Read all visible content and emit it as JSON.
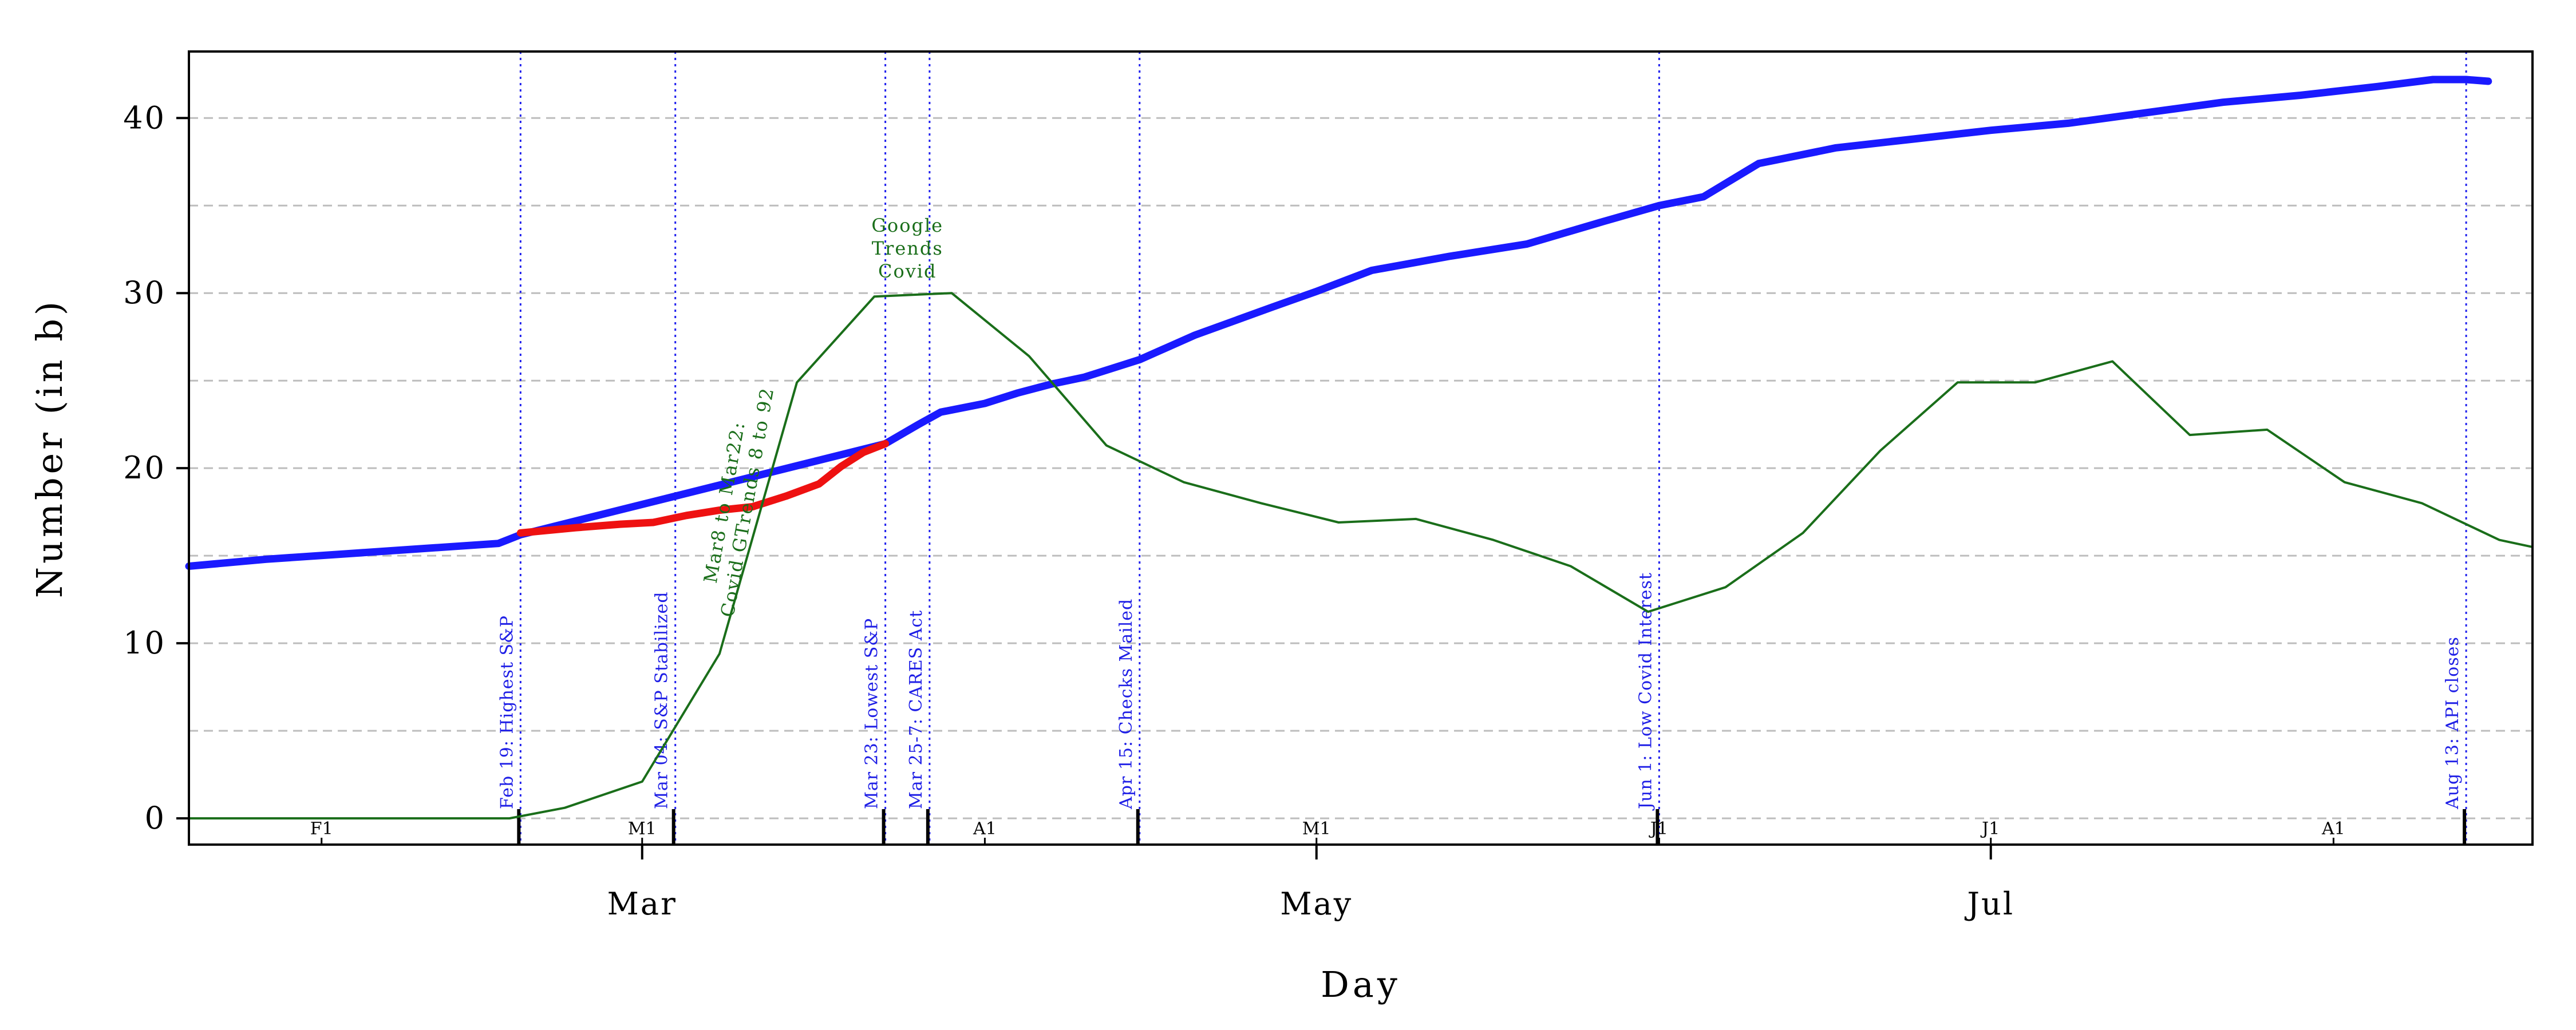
{
  "chart_data": {
    "type": "line",
    "xlabel": "Day",
    "ylabel": "Number (in b)",
    "x_range": [
      "2020-01-20",
      "2020-08-19"
    ],
    "ylim": [
      -1.5,
      43.8
    ],
    "y_ticks": [
      0,
      10,
      20,
      30,
      40
    ],
    "y_minor_gridlines": [
      5,
      15,
      25,
      35
    ],
    "grid": "horizontal dashed",
    "x_ticks": [
      {
        "date": "2020-03-01",
        "label": "Mar"
      },
      {
        "date": "2020-05-01",
        "label": "May"
      },
      {
        "date": "2020-07-01",
        "label": "Jul"
      }
    ],
    "x_minor_ticks": [
      {
        "date": "2020-02-01",
        "label": "F1"
      },
      {
        "date": "2020-03-01",
        "label": "M1"
      },
      {
        "date": "2020-04-01",
        "label": "A1"
      },
      {
        "date": "2020-05-01",
        "label": "M1"
      },
      {
        "date": "2020-06-01",
        "label": "J1"
      },
      {
        "date": "2020-07-01",
        "label": "J1"
      },
      {
        "date": "2020-08-01",
        "label": "A1"
      }
    ],
    "events": [
      {
        "date": "2020-02-19",
        "label": "Feb 19: Highest S&P"
      },
      {
        "date": "2020-03-04",
        "label": "Mar 04: S&P Stabilized"
      },
      {
        "date": "2020-03-23",
        "label": "Mar 23: Lowest S&P"
      },
      {
        "date": "2020-03-27",
        "label": "Mar 25-7: CARES Act"
      },
      {
        "date": "2020-04-15",
        "label": "Apr 15: Checks Mailed"
      },
      {
        "date": "2020-06-01",
        "label": "Jun  1: Low Covid Interest"
      },
      {
        "date": "2020-08-13",
        "label": "Aug 13: API closes"
      }
    ],
    "annotations": [
      {
        "text": [
          "Google",
          "Trends",
          "Covid"
        ],
        "x": "2020-03-25",
        "y": 33.5
      },
      {
        "text": [
          "Mar8 to Mar22:",
          "Covid GTrends 8 to 92"
        ],
        "x": "2020-03-09",
        "y": 18
      }
    ],
    "series": [
      {
        "color": "#1a1aff",
        "style": "thick",
        "points": [
          [
            "2020-01-20",
            14.4
          ],
          [
            "2020-01-27",
            14.8
          ],
          [
            "2020-02-03",
            15.1
          ],
          [
            "2020-02-10",
            15.4
          ],
          [
            "2020-02-17",
            15.7
          ],
          [
            "2020-02-19",
            16.2
          ],
          [
            "2020-03-23",
            21.4
          ],
          [
            "2020-03-26",
            22.5
          ],
          [
            "2020-03-28",
            23.2
          ],
          [
            "2020-04-01",
            23.7
          ],
          [
            "2020-04-04",
            24.3
          ],
          [
            "2020-04-07",
            24.8
          ],
          [
            "2020-04-10",
            25.2
          ],
          [
            "2020-04-15",
            26.2
          ],
          [
            "2020-04-20",
            27.6
          ],
          [
            "2020-04-27",
            29.2
          ],
          [
            "2020-05-01",
            30.1
          ],
          [
            "2020-05-06",
            31.3
          ],
          [
            "2020-05-13",
            32.1
          ],
          [
            "2020-05-20",
            32.8
          ],
          [
            "2020-05-27",
            34.1
          ],
          [
            "2020-06-01",
            35.0
          ],
          [
            "2020-06-05",
            35.5
          ],
          [
            "2020-06-10",
            37.4
          ],
          [
            "2020-06-17",
            38.3
          ],
          [
            "2020-06-24",
            38.8
          ],
          [
            "2020-07-01",
            39.3
          ],
          [
            "2020-07-08",
            39.7
          ],
          [
            "2020-07-15",
            40.3
          ],
          [
            "2020-07-22",
            40.9
          ],
          [
            "2020-07-29",
            41.3
          ],
          [
            "2020-08-05",
            41.8
          ],
          [
            "2020-08-10",
            42.2
          ],
          [
            "2020-08-13",
            42.2
          ],
          [
            "2020-08-15",
            42.1
          ]
        ]
      },
      {
        "color": "#ee1111",
        "style": "thick",
        "points": [
          [
            "2020-02-19",
            16.3
          ],
          [
            "2020-02-24",
            16.6
          ],
          [
            "2020-02-28",
            16.8
          ],
          [
            "2020-03-02",
            16.9
          ],
          [
            "2020-03-05",
            17.3
          ],
          [
            "2020-03-08",
            17.6
          ],
          [
            "2020-03-11",
            17.8
          ],
          [
            "2020-03-14",
            18.4
          ],
          [
            "2020-03-17",
            19.1
          ],
          [
            "2020-03-19",
            20.1
          ],
          [
            "2020-03-21",
            20.9
          ],
          [
            "2020-03-23",
            21.4
          ]
        ]
      },
      {
        "name": "Google Trends Covid",
        "color": "#1a6e1a",
        "style": "thin",
        "points": [
          [
            "2020-01-20",
            0
          ],
          [
            "2020-02-18",
            0
          ],
          [
            "2020-02-23",
            0.6
          ],
          [
            "2020-03-01",
            2.1
          ],
          [
            "2020-03-08",
            9.4
          ],
          [
            "2020-03-15",
            24.9
          ],
          [
            "2020-03-22",
            29.8
          ],
          [
            "2020-03-29",
            30.0
          ],
          [
            "2020-04-05",
            26.4
          ],
          [
            "2020-04-12",
            21.3
          ],
          [
            "2020-04-19",
            19.2
          ],
          [
            "2020-04-26",
            18.0
          ],
          [
            "2020-05-03",
            16.9
          ],
          [
            "2020-05-10",
            17.1
          ],
          [
            "2020-05-17",
            15.9
          ],
          [
            "2020-05-24",
            14.4
          ],
          [
            "2020-05-31",
            11.8
          ],
          [
            "2020-06-07",
            13.2
          ],
          [
            "2020-06-14",
            16.3
          ],
          [
            "2020-06-21",
            21.0
          ],
          [
            "2020-06-28",
            24.9
          ],
          [
            "2020-07-05",
            24.9
          ],
          [
            "2020-07-12",
            26.1
          ],
          [
            "2020-07-19",
            21.9
          ],
          [
            "2020-07-26",
            22.2
          ],
          [
            "2020-08-02",
            19.2
          ],
          [
            "2020-08-09",
            18.0
          ],
          [
            "2020-08-16",
            15.9
          ],
          [
            "2020-08-19",
            15.5
          ]
        ]
      }
    ]
  }
}
